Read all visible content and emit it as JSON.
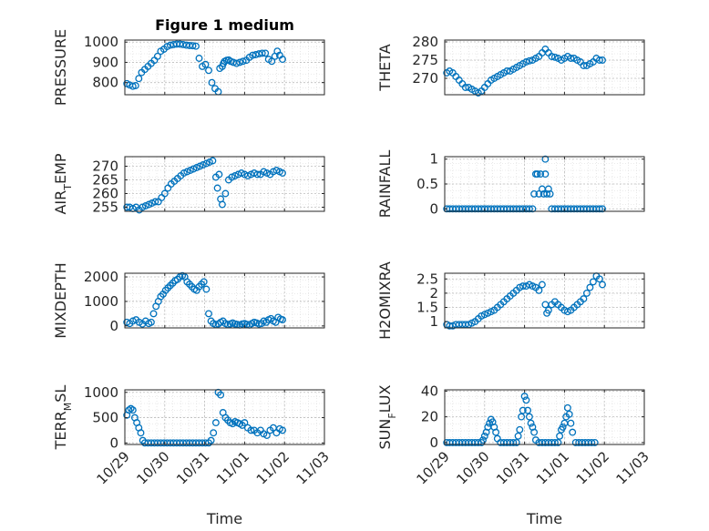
{
  "figure_title": "Figure 1 medium",
  "marker_color": "#0072bd",
  "x_ticks": [
    "10/29",
    "10/30",
    "10/31",
    "11/01",
    "11/02",
    "11/03"
  ],
  "x_label": "Time",
  "chart_data": [
    {
      "type": "scatter",
      "title": "Figure 1 medium",
      "ylabel": "PRESSURE",
      "xlabel": "",
      "xlim": [
        0,
        5
      ],
      "ylim": [
        740,
        1010
      ],
      "yticks": [
        800,
        900,
        1000
      ],
      "grid": true,
      "x": [
        0.05,
        0.12,
        0.2,
        0.27,
        0.35,
        0.42,
        0.5,
        0.58,
        0.66,
        0.74,
        0.82,
        0.9,
        0.98,
        1.06,
        1.14,
        1.22,
        1.3,
        1.38,
        1.46,
        1.54,
        1.62,
        1.7,
        1.78,
        1.86,
        1.94,
        2.02,
        2.1,
        2.18,
        2.26,
        2.34,
        2.38,
        2.44,
        2.47,
        2.5,
        2.55,
        2.6,
        2.65,
        2.72,
        2.8,
        2.88,
        2.96,
        3.04,
        3.12,
        3.2,
        3.28,
        3.36,
        3.44,
        3.52,
        3.6,
        3.68,
        3.76,
        3.82,
        3.88,
        3.95
      ],
      "y": [
        795,
        788,
        782,
        785,
        820,
        850,
        865,
        880,
        895,
        910,
        930,
        955,
        965,
        978,
        985,
        988,
        990,
        990,
        988,
        985,
        983,
        982,
        980,
        920,
        880,
        890,
        860,
        800,
        770,
        755,
        870,
        880,
        895,
        905,
        910,
        912,
        905,
        900,
        895,
        900,
        905,
        910,
        925,
        935,
        938,
        942,
        945,
        945,
        915,
        905,
        930,
        955,
        935,
        915
      ]
    },
    {
      "type": "scatter",
      "title": "",
      "ylabel": "THETA",
      "xlabel": "",
      "xlim": [
        0,
        5
      ],
      "ylim": [
        265.5,
        280.5
      ],
      "yticks": [
        270,
        275,
        280
      ],
      "grid": true,
      "x": [
        0.05,
        0.12,
        0.2,
        0.28,
        0.36,
        0.44,
        0.52,
        0.6,
        0.68,
        0.76,
        0.84,
        0.92,
        1.0,
        1.08,
        1.16,
        1.24,
        1.32,
        1.4,
        1.48,
        1.56,
        1.64,
        1.72,
        1.8,
        1.88,
        1.96,
        2.04,
        2.12,
        2.2,
        2.28,
        2.36,
        2.44,
        2.52,
        2.6,
        2.68,
        2.76,
        2.84,
        2.92,
        3.0,
        3.08,
        3.16,
        3.24,
        3.32,
        3.4,
        3.48,
        3.56,
        3.64,
        3.72,
        3.8,
        3.88,
        3.95
      ],
      "y": [
        271.5,
        272,
        271.5,
        270.5,
        269.5,
        268.5,
        267.5,
        267.5,
        267,
        266.5,
        266,
        266.5,
        267.5,
        268.5,
        269.5,
        270,
        270.5,
        271,
        271.5,
        272,
        272,
        272.5,
        273,
        273.5,
        274,
        274.5,
        274.8,
        275,
        275.5,
        276,
        277,
        278,
        277,
        276,
        275.8,
        275.5,
        275,
        275.5,
        276,
        275.5,
        275.5,
        275,
        274.5,
        273.5,
        273.5,
        274,
        274.5,
        275.5,
        275,
        275
      ]
    },
    {
      "type": "scatter",
      "title": "",
      "ylabel": "AIR_TEMP",
      "xlabel": "",
      "xlim": [
        0,
        5
      ],
      "ylim": [
        253.5,
        273.5
      ],
      "yticks": [
        255,
        260,
        265,
        270
      ],
      "grid": true,
      "x": [
        0.05,
        0.12,
        0.2,
        0.28,
        0.36,
        0.44,
        0.52,
        0.6,
        0.68,
        0.76,
        0.84,
        0.92,
        1.0,
        1.08,
        1.16,
        1.24,
        1.32,
        1.4,
        1.48,
        1.56,
        1.64,
        1.72,
        1.8,
        1.88,
        1.96,
        2.04,
        2.12,
        2.2,
        2.28,
        2.32,
        2.36,
        2.4,
        2.44,
        2.52,
        2.6,
        2.68,
        2.76,
        2.84,
        2.92,
        3.0,
        3.08,
        3.16,
        3.24,
        3.32,
        3.4,
        3.48,
        3.56,
        3.64,
        3.72,
        3.8,
        3.88,
        3.95
      ],
      "y": [
        255,
        255,
        254.5,
        255,
        254,
        255,
        255.5,
        256,
        256.5,
        257,
        257,
        258.5,
        260,
        262,
        263.5,
        264.5,
        265.5,
        266.5,
        267.5,
        268,
        268.5,
        269,
        269.5,
        270,
        270.5,
        271,
        271.5,
        272,
        266,
        262,
        267,
        258,
        256,
        260,
        265,
        266,
        266.5,
        267,
        267.5,
        267,
        266.5,
        267,
        267.5,
        267,
        267,
        268,
        267.5,
        267,
        268,
        268.5,
        268,
        267.5
      ]
    },
    {
      "type": "scatter",
      "title": "",
      "ylabel": "RAINFALL",
      "xlabel": "",
      "xlim": [
        0,
        5
      ],
      "ylim": [
        -0.05,
        1.05
      ],
      "yticks": [
        0,
        0.5,
        1
      ],
      "grid": true,
      "x": [
        0.05,
        0.12,
        0.2,
        0.28,
        0.36,
        0.44,
        0.52,
        0.6,
        0.68,
        0.76,
        0.84,
        0.92,
        1.0,
        1.08,
        1.16,
        1.24,
        1.32,
        1.4,
        1.48,
        1.56,
        1.64,
        1.72,
        1.8,
        1.88,
        1.96,
        2.04,
        2.12,
        2.2,
        2.24,
        2.28,
        2.32,
        2.36,
        2.4,
        2.44,
        2.48,
        2.52,
        2.56,
        2.6,
        2.64,
        2.52,
        2.68,
        2.76,
        2.84,
        2.92,
        3.0,
        3.08,
        3.16,
        3.24,
        3.32,
        3.4,
        3.48,
        3.56,
        3.64,
        3.72,
        3.8,
        3.88,
        3.95
      ],
      "y": [
        0,
        0,
        0,
        0,
        0,
        0,
        0,
        0,
        0,
        0,
        0,
        0,
        0,
        0,
        0,
        0,
        0,
        0,
        0,
        0,
        0,
        0,
        0,
        0,
        0,
        0,
        0,
        0,
        0.3,
        0.7,
        0.7,
        0.3,
        0.7,
        0.4,
        0.3,
        1.0,
        0.3,
        0.4,
        0.3,
        0.7,
        0,
        0,
        0,
        0,
        0,
        0,
        0,
        0,
        0,
        0,
        0,
        0,
        0,
        0,
        0,
        0,
        0
      ]
    },
    {
      "type": "scatter",
      "title": "",
      "ylabel": "MIXDEPTH",
      "xlabel": "",
      "xlim": [
        0,
        5
      ],
      "ylim": [
        -80,
        2150
      ],
      "yticks": [
        0,
        1000,
        2000
      ],
      "grid": true,
      "x": [
        0.05,
        0.12,
        0.2,
        0.28,
        0.36,
        0.44,
        0.52,
        0.6,
        0.66,
        0.72,
        0.78,
        0.84,
        0.9,
        0.96,
        1.02,
        1.08,
        1.14,
        1.2,
        1.26,
        1.32,
        1.38,
        1.44,
        1.5,
        1.56,
        1.62,
        1.68,
        1.74,
        1.8,
        1.86,
        1.92,
        1.98,
        2.04,
        2.1,
        2.16,
        2.22,
        2.28,
        2.34,
        2.4,
        2.46,
        2.52,
        2.58,
        2.64,
        2.7,
        2.76,
        2.82,
        2.88,
        2.94,
        3.0,
        3.06,
        3.12,
        3.18,
        3.24,
        3.3,
        3.36,
        3.42,
        3.48,
        3.54,
        3.6,
        3.66,
        3.72,
        3.78,
        3.84,
        3.9,
        3.95
      ],
      "y": [
        150,
        100,
        200,
        250,
        150,
        80,
        200,
        100,
        150,
        500,
        800,
        1000,
        1200,
        1300,
        1450,
        1550,
        1650,
        1750,
        1850,
        1900,
        2000,
        2050,
        2000,
        1800,
        1700,
        1600,
        1500,
        1450,
        1600,
        1700,
        1800,
        1500,
        500,
        200,
        100,
        50,
        80,
        150,
        200,
        100,
        50,
        80,
        120,
        80,
        60,
        40,
        80,
        100,
        60,
        40,
        100,
        150,
        120,
        80,
        100,
        200,
        150,
        250,
        300,
        200,
        150,
        350,
        280,
        250
      ]
    },
    {
      "type": "scatter",
      "title": "",
      "ylabel": "H2OMIXRA",
      "xlabel": "",
      "xlim": [
        0,
        5
      ],
      "ylim": [
        0.78,
        2.7
      ],
      "yticks": [
        1,
        1.5,
        2,
        2.5
      ],
      "grid": true,
      "x": [
        0.05,
        0.12,
        0.2,
        0.28,
        0.36,
        0.44,
        0.52,
        0.6,
        0.68,
        0.76,
        0.84,
        0.92,
        1.0,
        1.08,
        1.16,
        1.24,
        1.32,
        1.4,
        1.48,
        1.56,
        1.64,
        1.72,
        1.8,
        1.88,
        1.96,
        2.04,
        2.12,
        2.2,
        2.28,
        2.36,
        2.44,
        2.52,
        2.56,
        2.6,
        2.68,
        2.76,
        2.84,
        2.92,
        3.0,
        3.08,
        3.16,
        3.24,
        3.32,
        3.4,
        3.48,
        3.56,
        3.64,
        3.72,
        3.8,
        3.88,
        3.95
      ],
      "y": [
        0.9,
        0.85,
        0.85,
        0.9,
        0.9,
        0.9,
        0.9,
        0.9,
        0.95,
        1.0,
        1.1,
        1.2,
        1.25,
        1.3,
        1.35,
        1.4,
        1.5,
        1.6,
        1.7,
        1.8,
        1.9,
        2.0,
        2.1,
        2.2,
        2.25,
        2.25,
        2.3,
        2.25,
        2.2,
        2.1,
        2.3,
        1.6,
        1.3,
        1.4,
        1.6,
        1.7,
        1.6,
        1.5,
        1.4,
        1.35,
        1.4,
        1.5,
        1.6,
        1.7,
        1.8,
        2.0,
        2.2,
        2.4,
        2.6,
        2.5,
        2.3
      ]
    },
    {
      "type": "scatter",
      "title": "",
      "ylabel": "TERR_MSL",
      "xlabel": "",
      "xlim": [
        0,
        5
      ],
      "ylim": [
        -30,
        1050
      ],
      "yticks": [
        0,
        500,
        1000
      ],
      "grid": true,
      "x": [
        0.05,
        0.1,
        0.15,
        0.2,
        0.25,
        0.3,
        0.35,
        0.4,
        0.45,
        0.5,
        0.58,
        0.66,
        0.74,
        0.82,
        0.9,
        0.98,
        1.06,
        1.14,
        1.22,
        1.3,
        1.38,
        1.46,
        1.54,
        1.62,
        1.7,
        1.78,
        1.86,
        1.94,
        2.02,
        2.1,
        2.16,
        2.22,
        2.28,
        2.34,
        2.4,
        2.46,
        2.52,
        2.58,
        2.64,
        2.7,
        2.76,
        2.82,
        2.88,
        2.94,
        3.0,
        3.08,
        3.16,
        3.24,
        3.32,
        3.4,
        3.48,
        3.56,
        3.64,
        3.72,
        3.8,
        3.88,
        3.95
      ],
      "y": [
        550,
        650,
        680,
        650,
        500,
        400,
        300,
        200,
        50,
        0,
        0,
        0,
        0,
        0,
        0,
        0,
        0,
        0,
        0,
        0,
        0,
        0,
        0,
        0,
        0,
        0,
        0,
        0,
        0,
        0,
        50,
        200,
        400,
        1000,
        950,
        600,
        500,
        450,
        400,
        380,
        420,
        400,
        380,
        350,
        400,
        300,
        250,
        250,
        200,
        250,
        180,
        150,
        250,
        300,
        200,
        280,
        250
      ]
    },
    {
      "type": "scatter",
      "title": "",
      "ylabel": "SUN_FLUX",
      "xlabel": "",
      "xlim": [
        0,
        5
      ],
      "ylim": [
        -1.5,
        41
      ],
      "yticks": [
        0,
        20,
        40
      ],
      "grid": true,
      "x": [
        0.05,
        0.12,
        0.2,
        0.28,
        0.36,
        0.44,
        0.52,
        0.6,
        0.68,
        0.76,
        0.84,
        0.92,
        0.96,
        1.0,
        1.04,
        1.08,
        1.12,
        1.16,
        1.2,
        1.24,
        1.28,
        1.32,
        1.4,
        1.48,
        1.56,
        1.64,
        1.72,
        1.8,
        1.84,
        1.88,
        1.92,
        1.96,
        2.0,
        2.04,
        2.08,
        2.12,
        2.16,
        2.2,
        2.24,
        2.28,
        2.36,
        2.44,
        2.52,
        2.6,
        2.68,
        2.76,
        2.84,
        2.88,
        2.92,
        2.96,
        3.0,
        3.04,
        3.08,
        3.12,
        3.16,
        3.2,
        3.28,
        3.36,
        3.44,
        3.52,
        3.6,
        3.68,
        3.76
      ],
      "y": [
        0,
        0,
        0,
        0,
        0,
        0,
        0,
        0,
        0,
        0,
        0,
        0,
        2,
        5,
        8,
        12,
        15,
        18,
        16,
        12,
        8,
        3,
        0,
        0,
        0,
        0,
        0,
        0,
        5,
        10,
        20,
        25,
        36,
        33,
        25,
        20,
        15,
        12,
        8,
        2,
        0,
        0,
        0,
        0,
        0,
        0,
        0,
        5,
        10,
        12,
        15,
        20,
        27,
        22,
        15,
        8,
        0,
        0,
        0,
        0,
        0,
        0,
        0
      ]
    }
  ]
}
